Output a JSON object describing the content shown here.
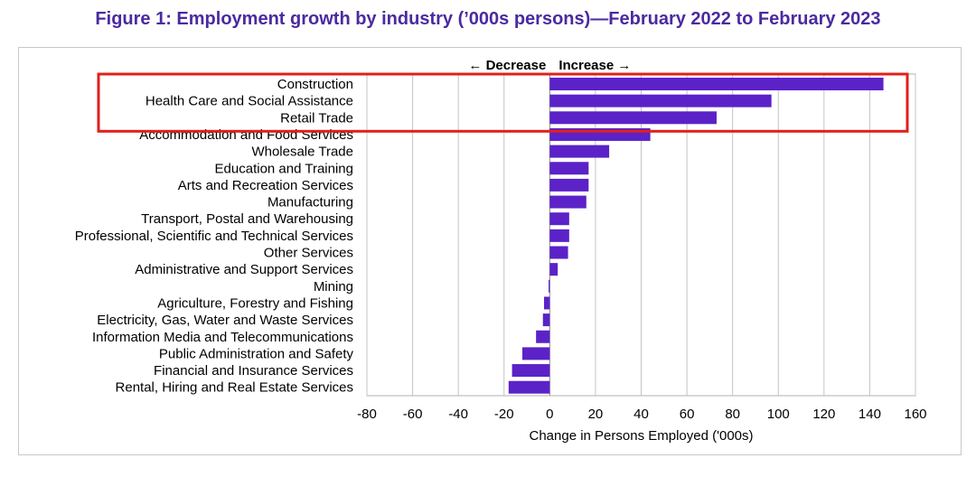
{
  "chart_data": {
    "type": "bar",
    "orientation": "horizontal",
    "title": "Figure 1: Employment growth by industry (’000s persons)—February 2022 to February 2023",
    "xlabel": "Change in Persons Employed ('000s)",
    "ylabel": "",
    "xlim": [
      -80,
      160
    ],
    "xticks": [
      -80,
      -60,
      -40,
      -20,
      0,
      20,
      40,
      60,
      80,
      100,
      120,
      140,
      160
    ],
    "grid": "vertical",
    "bar_color": "#5b22c8",
    "direction_labels": {
      "decrease": "← Decrease",
      "increase": "Increase →"
    },
    "highlight": {
      "color": "#e0201b",
      "categories": [
        "Construction",
        "Health Care and Social Assistance",
        "Retail Trade"
      ]
    },
    "categories": [
      "Construction",
      "Health Care and Social Assistance",
      "Retail Trade",
      "Accommodation and Food Services",
      "Wholesale Trade",
      "Education and Training",
      "Arts and Recreation Services",
      "Manufacturing",
      "Transport, Postal and Warehousing",
      "Professional, Scientific and Technical Services",
      "Other Services",
      "Administrative and Support Services",
      "Mining",
      "Agriculture, Forestry and Fishing",
      "Electricity, Gas, Water and Waste Services",
      "Information Media and Telecommunications",
      "Public Administration and Safety",
      "Financial and Insurance Services",
      "Rental, Hiring and Real Estate Services"
    ],
    "values": [
      146,
      97,
      73,
      44,
      26,
      17,
      17,
      16,
      8.5,
      8.5,
      8,
      3.5,
      -0.5,
      -2.5,
      -3,
      -6,
      -12,
      -16.5,
      -18
    ]
  }
}
